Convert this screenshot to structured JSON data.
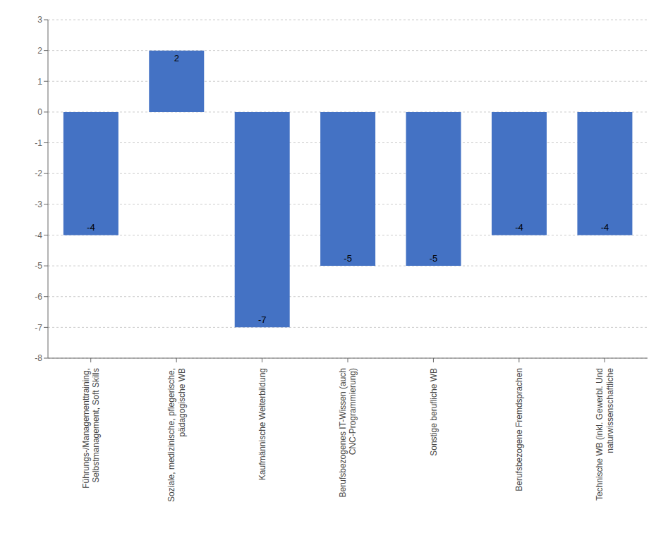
{
  "chart_data": {
    "type": "bar",
    "categories": [
      "Führungs-/Managementtraining,\nSelbstmanagement, Soft Skills",
      "Soziale, medizinische, pflegerische,\npädagogische WB",
      "Kaufmännische Weiterbildung",
      "Berufsbezogenes IT-Wissen (auch\nCNC-Programmierung)",
      "Sonstige berufliche WB",
      "Berufsbezogene Fremdsprachen",
      "Technische WB (inkl. Gewerbl. Und\nnaturwissenschaftliche"
    ],
    "values": [
      -4,
      2,
      -7,
      -5,
      -5,
      -4,
      -4
    ],
    "color": "#4472C4",
    "ylim": [
      -8,
      3
    ],
    "yticks": [
      -8,
      -7,
      -6,
      -5,
      -4,
      -3,
      -2,
      -1,
      0,
      1,
      2,
      3
    ],
    "grid": true,
    "data_labels": true
  }
}
